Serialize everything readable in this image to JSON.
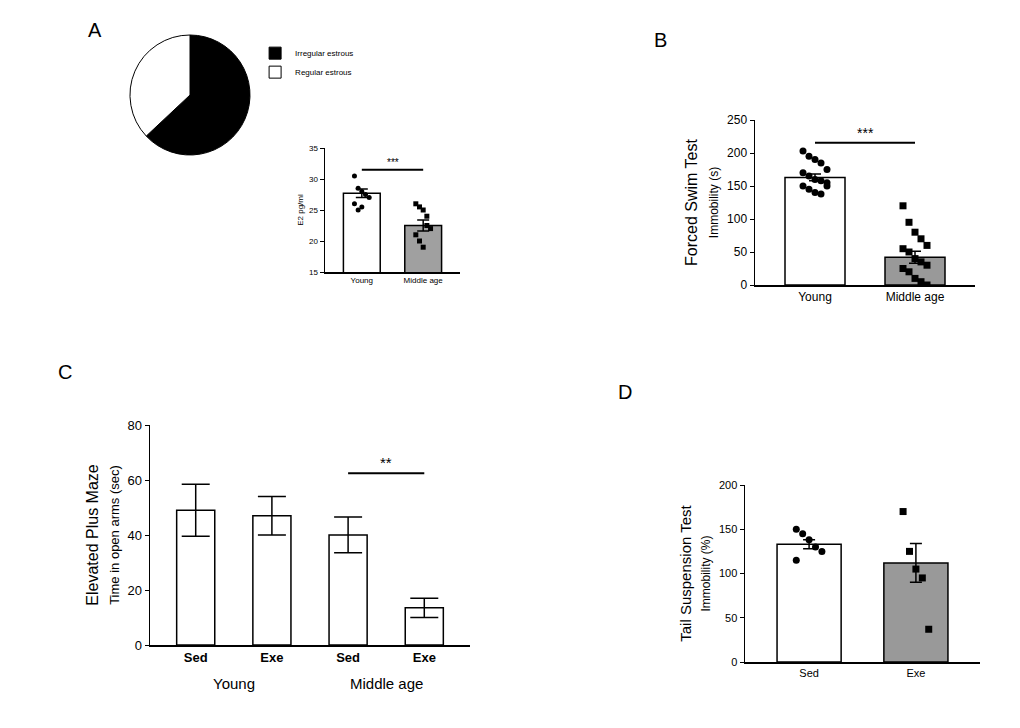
{
  "chart_data": [
    {
      "type": "pie",
      "title": "A",
      "categories": [
        "Irregular estrous",
        "Regular estrous"
      ],
      "values": [
        63,
        37
      ],
      "colors": [
        "#000000",
        "#ffffff"
      ],
      "legend": "top right"
    },
    {
      "type": "bar",
      "categories": [
        "Young",
        "Middle age"
      ],
      "values": [
        27.7,
        22.5
      ],
      "errors": [
        0.7,
        0.9
      ],
      "points": [
        [
          30.5,
          28.5,
          28,
          27.5,
          27,
          26,
          25,
          25.5
        ],
        [
          26,
          25.5,
          25,
          24,
          22,
          21,
          20,
          19,
          22.5
        ]
      ],
      "colors": [
        "#ffffff",
        "#a0a0a0"
      ],
      "ylabel": [
        "E2 pg/ml"
      ],
      "ylim": [
        15,
        35
      ],
      "yticks": [
        15,
        20,
        25,
        30,
        35
      ],
      "annotations": [
        {
          "text": "***",
          "between": [
            0,
            1
          ]
        }
      ]
    },
    {
      "type": "bar",
      "title": "B",
      "categories": [
        "Young",
        "Middle age"
      ],
      "values": [
        163,
        42
      ],
      "errors": [
        5,
        9
      ],
      "points": [
        [
          203,
          195,
          190,
          185,
          175,
          170,
          165,
          160,
          158,
          155,
          150,
          145,
          140,
          138,
          150
        ],
        [
          120,
          95,
          80,
          70,
          60,
          55,
          50,
          40,
          35,
          30,
          25,
          20,
          10,
          5,
          0
        ]
      ],
      "colors": [
        "#ffffff",
        "#999999"
      ],
      "ylabel": [
        "Forced Swim Test",
        "Immobility (s)"
      ],
      "ylim": [
        0,
        250
      ],
      "yticks": [
        0,
        50,
        100,
        150,
        200,
        250
      ],
      "annotations": [
        {
          "text": "***",
          "between": [
            0,
            1
          ]
        }
      ]
    },
    {
      "type": "bar",
      "title": "C",
      "categories": [
        "Sed",
        "Exe",
        "Sed",
        "Exe"
      ],
      "groups": [
        "Young",
        "Young",
        "Middle age",
        "Middle age"
      ],
      "values": [
        49,
        47,
        40,
        13.5
      ],
      "errors": [
        9.5,
        7,
        6.5,
        3.5
      ],
      "colors": [
        "#ffffff",
        "#ffffff",
        "#ffffff",
        "#ffffff"
      ],
      "ylabel": [
        "Elevated Plus Maze",
        "Time in open arms (sec)"
      ],
      "ylim": [
        0,
        80
      ],
      "yticks": [
        0,
        20,
        40,
        60,
        80
      ],
      "annotations": [
        {
          "text": "**",
          "between": [
            2,
            3
          ]
        }
      ]
    },
    {
      "type": "bar",
      "title": "D",
      "categories": [
        "Sed",
        "Exe"
      ],
      "values": [
        133,
        112
      ],
      "errors": [
        5,
        22
      ],
      "points": [
        [
          150,
          145,
          138,
          130,
          125,
          115
        ],
        [
          170,
          125,
          105,
          95,
          37
        ]
      ],
      "colors": [
        "#ffffff",
        "#999999"
      ],
      "ylabel": [
        "Tail Suspension Test",
        "Immobility (%)"
      ],
      "ylim": [
        0,
        200
      ],
      "yticks": [
        0,
        50,
        100,
        150,
        200
      ]
    }
  ]
}
